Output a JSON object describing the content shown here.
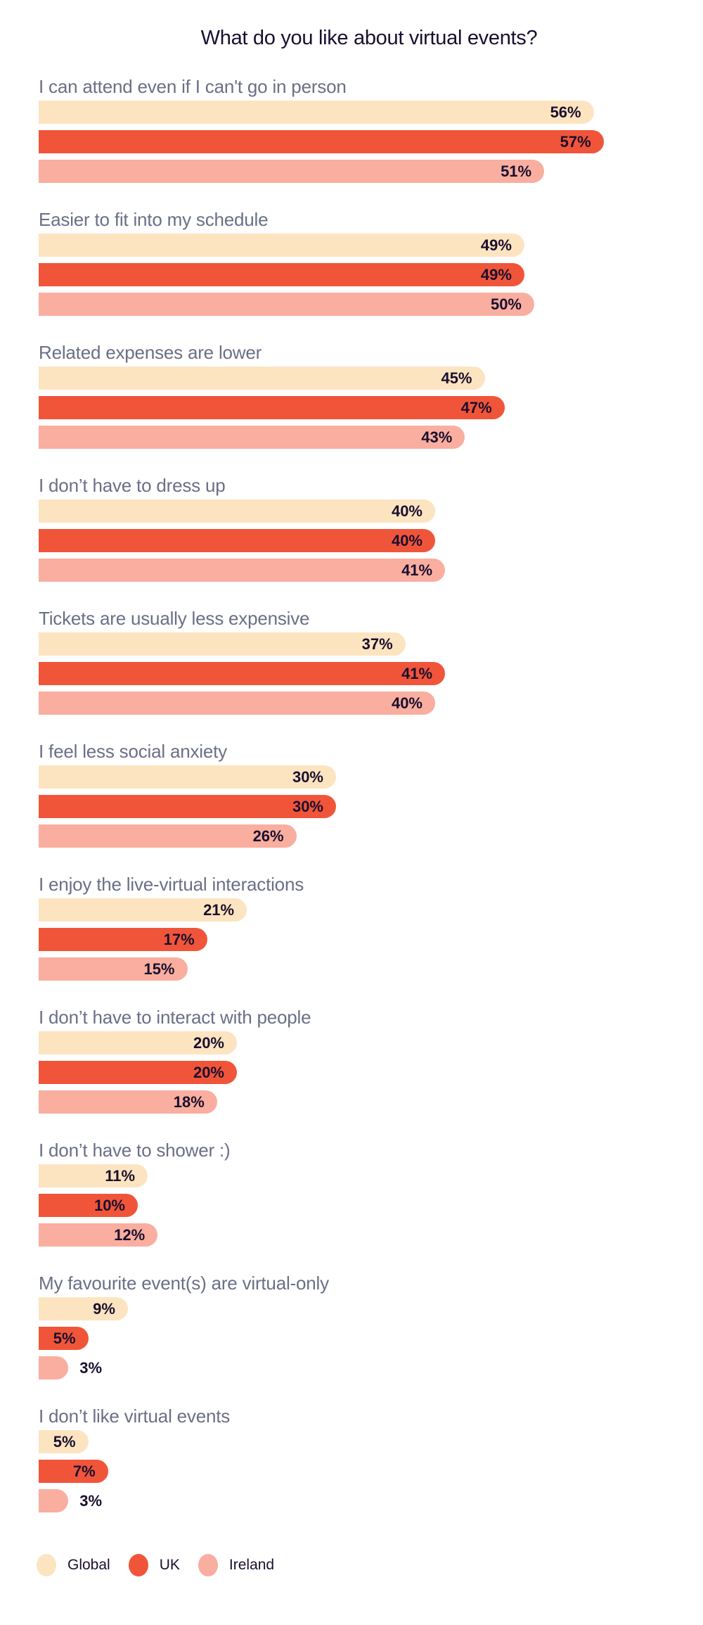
{
  "chart_data": {
    "type": "bar",
    "orientation": "horizontal",
    "title": "What do you like about virtual events?",
    "categories": [
      "I can attend even if I can't go in person",
      "Easier to fit into my schedule",
      "Related expenses are lower",
      "I don’t have to dress up",
      "Tickets are usually less expensive",
      "I feel less social anxiety",
      "I enjoy the live-virtual interactions",
      "I don’t have to interact with people",
      "I don’t have to shower :)",
      "My favourite event(s) are virtual-only",
      "I don’t like virtual events"
    ],
    "series": [
      {
        "name": "Global",
        "color": "#fde4c0",
        "values": [
          56,
          49,
          45,
          40,
          37,
          30,
          21,
          20,
          11,
          9,
          5
        ]
      },
      {
        "name": "UK",
        "color": "#f0553a",
        "values": [
          57,
          49,
          47,
          40,
          41,
          30,
          17,
          20,
          10,
          5,
          7
        ]
      },
      {
        "name": "Ireland",
        "color": "#f9ae9f",
        "values": [
          51,
          50,
          43,
          41,
          40,
          26,
          15,
          18,
          12,
          3,
          3
        ]
      }
    ],
    "value_suffix": "%",
    "grid": false,
    "legend_position": "bottom-left"
  }
}
